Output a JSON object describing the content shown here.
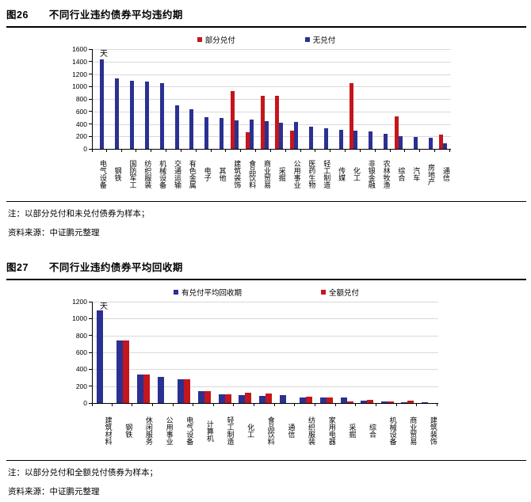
{
  "charts": [
    {
      "figure_label": "图26",
      "title": "不同行业违约债券平均违约期",
      "note": "注：以部分兑付和未兑付债券为样本；",
      "source": "资料来源：中证鹏元整理",
      "chart_data": {
        "type": "bar",
        "unit_label": "天",
        "ylim": [
          0,
          1600
        ],
        "yticks": [
          0,
          200,
          400,
          600,
          800,
          1000,
          1200,
          1400,
          1600
        ],
        "grid": true,
        "legend_position": "top-center",
        "categories": [
          "电气设备",
          "钢铁",
          "国防军工",
          "纺织服装",
          "机械设备",
          "交通运输",
          "有色金属",
          "电子",
          "其他",
          "建筑装饰",
          "食品饮料",
          "商业贸易",
          "采掘",
          "公用事业",
          "医药生物",
          "轻工制造",
          "传媒",
          "化工",
          "非银金融",
          "农林牧渔",
          "综合",
          "汽车",
          "房地产",
          "通信"
        ],
        "series": [
          {
            "name": "部分兑付",
            "color": "#c4161c",
            "values": [
              null,
              null,
              null,
              null,
              null,
              null,
              null,
              null,
              null,
              930,
              270,
              850,
              855,
              295,
              null,
              null,
              null,
              1060,
              null,
              null,
              525,
              null,
              null,
              225
            ]
          },
          {
            "name": "无兑付",
            "color": "#2a3191",
            "values": [
              1430,
              1130,
              1090,
              1075,
              1050,
              700,
              640,
              510,
              495,
              460,
              470,
              440,
              425,
              430,
              350,
              330,
              310,
              290,
              285,
              240,
              205,
              190,
              175,
              85
            ]
          }
        ]
      }
    },
    {
      "figure_label": "图27",
      "title": "不同行业违约债券平均回收期",
      "note": "注：以部分兑付和全额兑付债券为样本；",
      "source": "资料来源：中证鹏元整理",
      "chart_data": {
        "type": "bar",
        "unit_label": "天",
        "ylim": [
          0,
          1200
        ],
        "yticks": [
          0,
          200,
          400,
          600,
          800,
          1000,
          1200
        ],
        "grid": true,
        "legend_position": "top-center",
        "categories": [
          "建筑材料",
          "钢铁",
          "休闲服务",
          "公用事业",
          "电气设备",
          "计算机",
          "轻工制造",
          "化工",
          "食品饮料",
          "通信",
          "纺织服装",
          "家用电器",
          "采掘",
          "综合",
          "机械设备",
          "商业贸易",
          "建筑装饰"
        ],
        "series": [
          {
            "name": "有兑付平均回收期",
            "color": "#2a3191",
            "values": [
              1100,
              740,
              335,
              310,
              285,
              140,
              105,
              90,
              80,
              90,
              70,
              65,
              70,
              30,
              15,
              10,
              8
            ]
          },
          {
            "name": "全额兑付",
            "color": "#c4161c",
            "values": [
              null,
              740,
              335,
              null,
              280,
              140,
              105,
              120,
              115,
              null,
              75,
              65,
              15,
              40,
              20,
              30,
              null
            ]
          }
        ]
      }
    }
  ],
  "colors": {
    "red_series": "#c4161c",
    "blue_series": "#2a3191",
    "gridline": "#d9d9d9",
    "axis": "#000000"
  }
}
